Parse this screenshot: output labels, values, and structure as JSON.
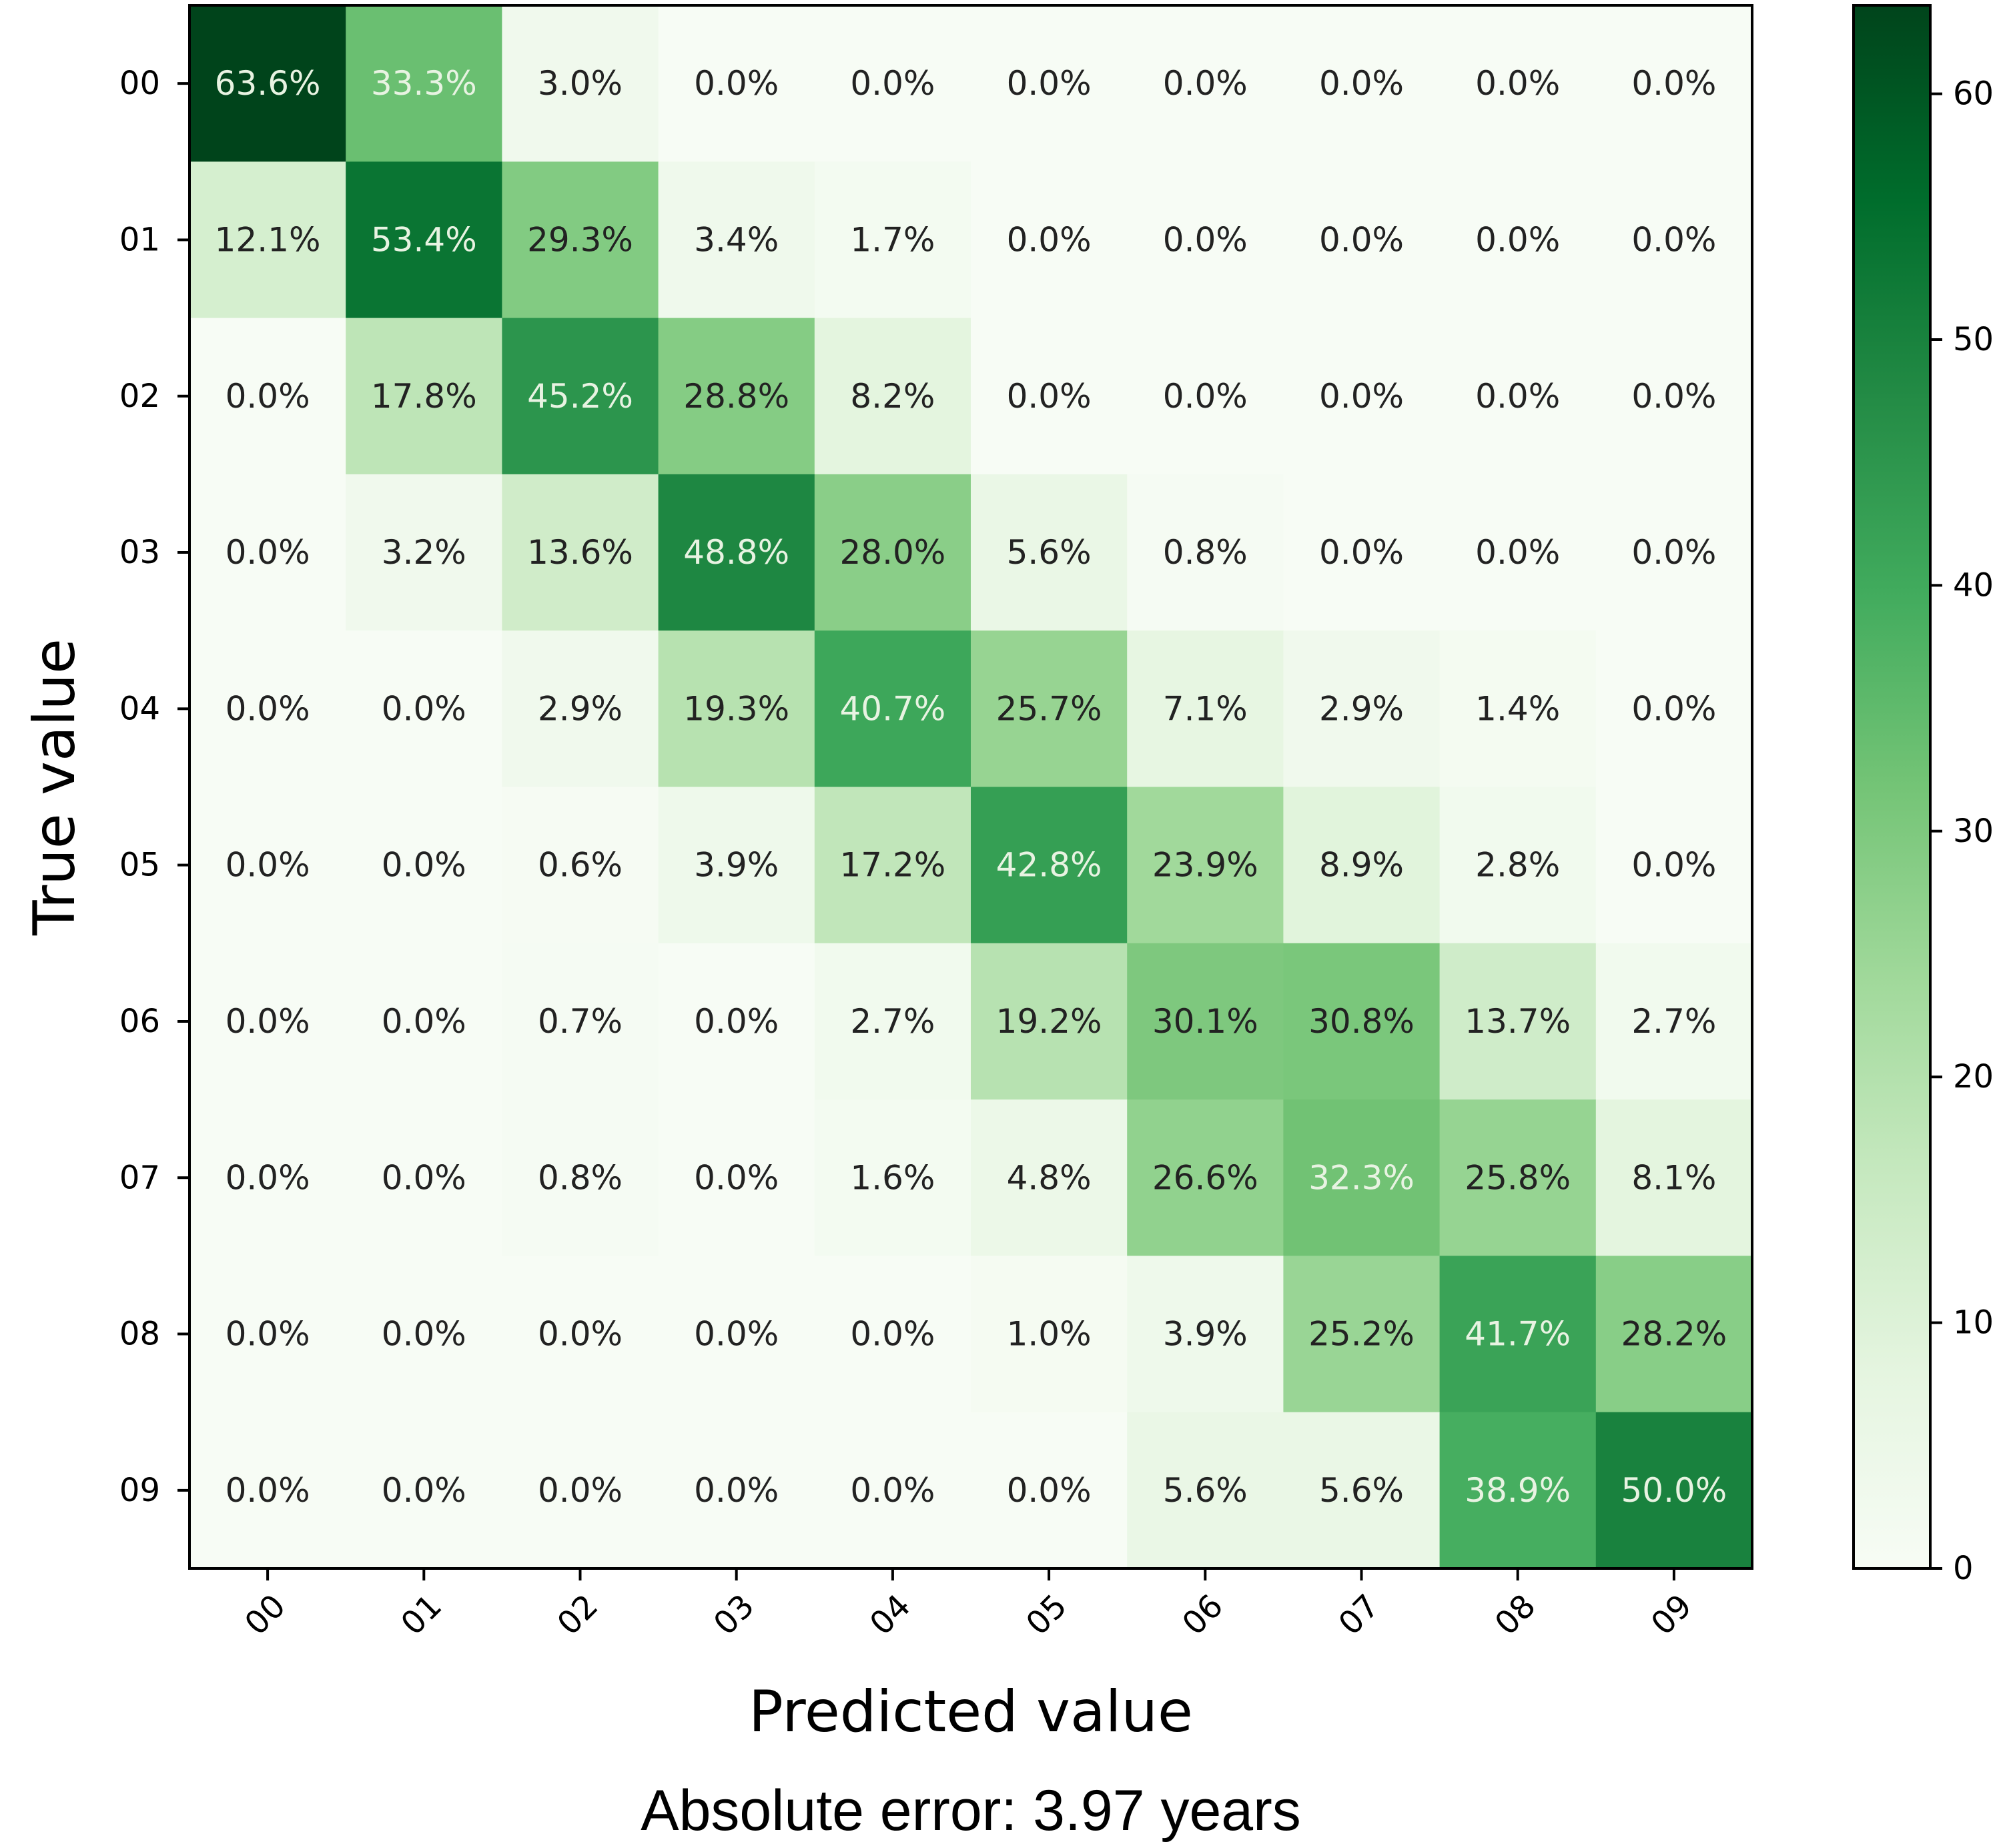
{
  "chart_data": {
    "type": "heatmap",
    "title": "Absolute error: 3.97 years",
    "xlabel": "Predicted value",
    "ylabel": "True value",
    "x_categories": [
      "00",
      "01",
      "02",
      "03",
      "04",
      "05",
      "06",
      "07",
      "08",
      "09"
    ],
    "y_categories": [
      "00",
      "01",
      "02",
      "03",
      "04",
      "05",
      "06",
      "07",
      "08",
      "09"
    ],
    "values": [
      [
        63.6,
        33.3,
        3.0,
        0.0,
        0.0,
        0.0,
        0.0,
        0.0,
        0.0,
        0.0
      ],
      [
        12.1,
        53.4,
        29.3,
        3.4,
        1.7,
        0.0,
        0.0,
        0.0,
        0.0,
        0.0
      ],
      [
        0.0,
        17.8,
        45.2,
        28.8,
        8.2,
        0.0,
        0.0,
        0.0,
        0.0,
        0.0
      ],
      [
        0.0,
        3.2,
        13.6,
        48.8,
        28.0,
        5.6,
        0.8,
        0.0,
        0.0,
        0.0
      ],
      [
        0.0,
        0.0,
        2.9,
        19.3,
        40.7,
        25.7,
        7.1,
        2.9,
        1.4,
        0.0
      ],
      [
        0.0,
        0.0,
        0.6,
        3.9,
        17.2,
        42.8,
        23.9,
        8.9,
        2.8,
        0.0
      ],
      [
        0.0,
        0.0,
        0.7,
        0.0,
        2.7,
        19.2,
        30.1,
        30.8,
        13.7,
        2.7
      ],
      [
        0.0,
        0.0,
        0.8,
        0.0,
        1.6,
        4.8,
        26.6,
        32.3,
        25.8,
        8.1
      ],
      [
        0.0,
        0.0,
        0.0,
        0.0,
        0.0,
        1.0,
        3.9,
        25.2,
        41.7,
        28.2
      ],
      [
        0.0,
        0.0,
        0.0,
        0.0,
        0.0,
        0.0,
        5.6,
        5.6,
        38.9,
        50.0
      ]
    ],
    "cell_labels": [
      [
        "63.6%",
        "33.3%",
        "3.0%",
        "0.0%",
        "0.0%",
        "0.0%",
        "0.0%",
        "0.0%",
        "0.0%",
        "0.0%"
      ],
      [
        "12.1%",
        "53.4%",
        "29.3%",
        "3.4%",
        "1.7%",
        "0.0%",
        "0.0%",
        "0.0%",
        "0.0%",
        "0.0%"
      ],
      [
        "0.0%",
        "17.8%",
        "45.2%",
        "28.8%",
        "8.2%",
        "0.0%",
        "0.0%",
        "0.0%",
        "0.0%",
        "0.0%"
      ],
      [
        "0.0%",
        "3.2%",
        "13.6%",
        "48.8%",
        "28.0%",
        "5.6%",
        "0.8%",
        "0.0%",
        "0.0%",
        "0.0%"
      ],
      [
        "0.0%",
        "0.0%",
        "2.9%",
        "19.3%",
        "40.7%",
        "25.7%",
        "7.1%",
        "2.9%",
        "1.4%",
        "0.0%"
      ],
      [
        "0.0%",
        "0.0%",
        "0.6%",
        "3.9%",
        "17.2%",
        "42.8%",
        "23.9%",
        "8.9%",
        "2.8%",
        "0.0%"
      ],
      [
        "0.0%",
        "0.0%",
        "0.7%",
        "0.0%",
        "2.7%",
        "19.2%",
        "30.1%",
        "30.8%",
        "13.7%",
        "2.7%"
      ],
      [
        "0.0%",
        "0.0%",
        "0.8%",
        "0.0%",
        "1.6%",
        "4.8%",
        "26.6%",
        "32.3%",
        "25.8%",
        "8.1%"
      ],
      [
        "0.0%",
        "0.0%",
        "0.0%",
        "0.0%",
        "0.0%",
        "1.0%",
        "3.9%",
        "25.2%",
        "41.7%",
        "28.2%"
      ],
      [
        "0.0%",
        "0.0%",
        "0.0%",
        "0.0%",
        "0.0%",
        "0.0%",
        "5.6%",
        "5.6%",
        "38.9%",
        "50.0%"
      ]
    ],
    "colorbar": {
      "range": [
        0,
        63.6
      ],
      "ticks": [
        0,
        10,
        20,
        30,
        40,
        50,
        60
      ],
      "tick_labels": [
        "0",
        "10",
        "20",
        "30",
        "40",
        "50",
        "60"
      ],
      "colormap": "Greens",
      "colors": [
        "#f7fcf5",
        "#e5f5e0",
        "#c7e9c0",
        "#a1d99b",
        "#74c476",
        "#41ab5d",
        "#238b45",
        "#006d2c",
        "#00441b"
      ]
    },
    "grid": false,
    "legend": "none"
  }
}
